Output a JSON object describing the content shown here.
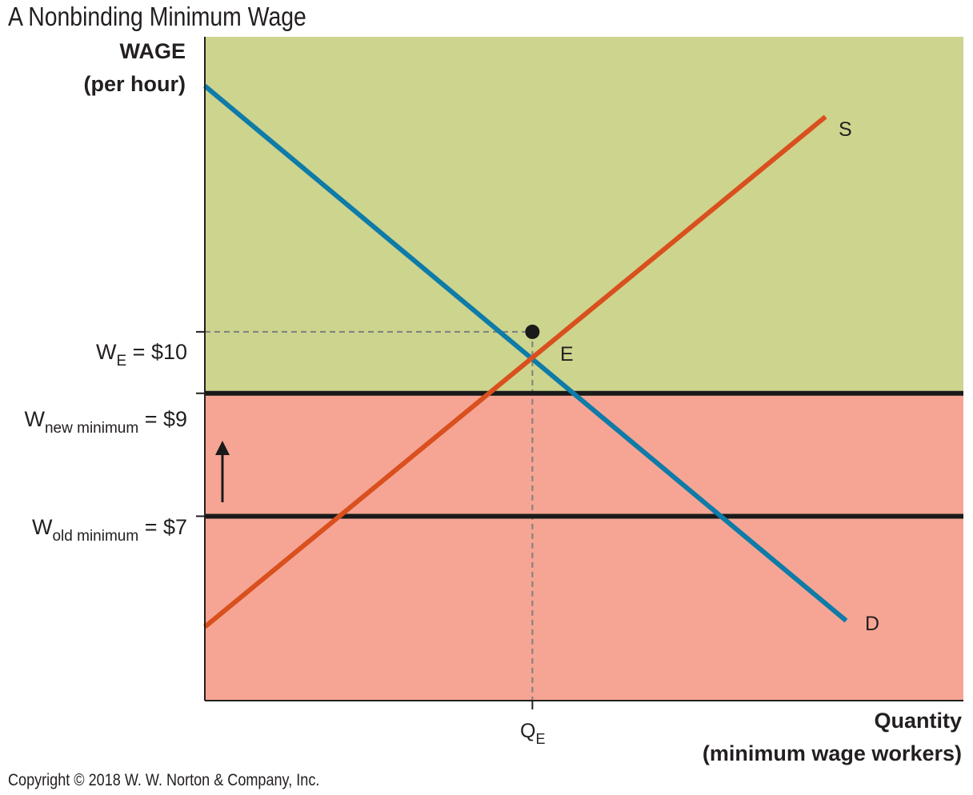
{
  "title": "A Nonbinding Minimum Wage",
  "copyright": "Copyright © 2018 W. W. Norton & Company, Inc.",
  "colors": {
    "above_region": "#cdd48d",
    "below_region": "#f6a594",
    "demand": "#0e7ba8",
    "supply": "#d9501e",
    "floor_line": "#1a1a1a",
    "guide": "#7f7f7f"
  },
  "chart_data": {
    "type": "line",
    "ylabel": [
      "WAGE",
      "(per hour)"
    ],
    "xlabel": [
      "Quantity",
      "(minimum wage workers)"
    ],
    "ylim": [
      4,
      14.8
    ],
    "xlim": [
      0,
      11
    ],
    "series": [
      {
        "name": "S",
        "x": [
          0,
          9
        ],
        "y": [
          5.2,
          13.5
        ]
      },
      {
        "name": "D",
        "x": [
          0,
          9.3
        ],
        "y": [
          14,
          5.3
        ]
      }
    ],
    "equilibrium": {
      "label": "E",
      "x": 4.75,
      "y": 10
    },
    "y_tick_labels": {
      "we": {
        "main": "W",
        "sub": "E",
        "rest": " = $10",
        "value": 10
      },
      "wnew": {
        "main": "W",
        "sub": "new minimum",
        "rest": " = $9",
        "value": 9
      },
      "wold": {
        "main": "W",
        "sub": "old minimum",
        "rest": " = $7",
        "value": 7
      }
    },
    "x_tick_label": {
      "main": "Q",
      "sub": "E",
      "value": 4.75
    },
    "minimum_wage_old": 7,
    "minimum_wage_new": 9,
    "arrow": "up"
  }
}
